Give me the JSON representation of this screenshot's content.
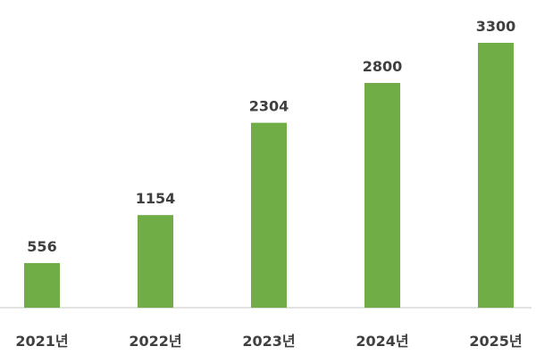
{
  "chart_data": {
    "type": "bar",
    "title": "",
    "xlabel": "",
    "ylabel": "",
    "categories": [
      "2021년",
      "2022년",
      "2023년",
      "2024년",
      "2025년"
    ],
    "values": [
      556,
      1154,
      2304,
      2800,
      3300
    ],
    "ylim": [
      0,
      3300
    ],
    "grid": false,
    "legend": "none",
    "data_labels": true,
    "bar_color": "#70AD47",
    "axis_color": "#D9D9D9",
    "text_color": "#404040"
  }
}
